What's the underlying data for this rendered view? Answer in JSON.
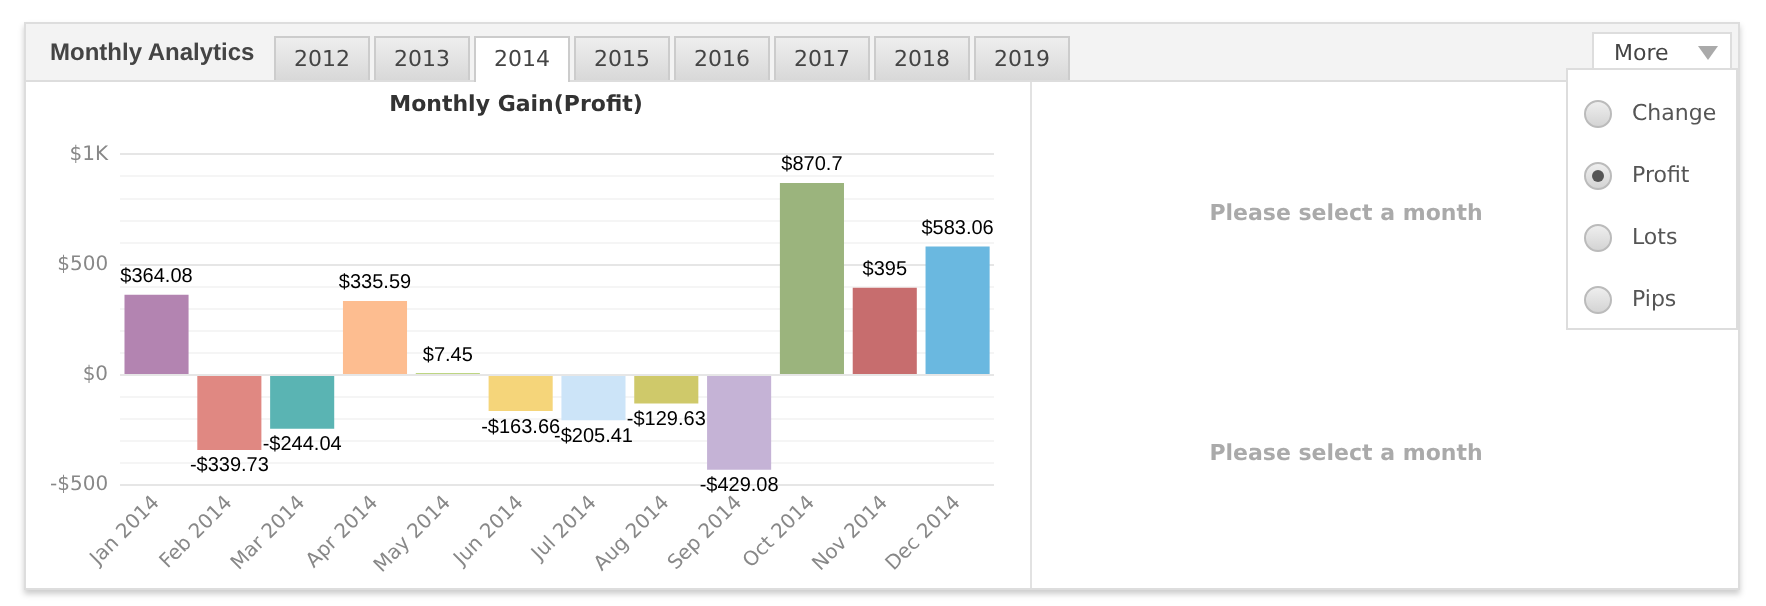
{
  "chart_data": {
    "type": "bar",
    "title": "Monthly Gain(Profit)",
    "categories": [
      "Jan 2014",
      "Feb 2014",
      "Mar 2014",
      "Apr 2014",
      "May 2014",
      "Jun 2014",
      "Jul 2014",
      "Aug 2014",
      "Sep 2014",
      "Oct 2014",
      "Nov 2014",
      "Dec 2014"
    ],
    "values": [
      364.08,
      -339.73,
      -244.04,
      335.59,
      7.45,
      -163.66,
      -205.41,
      -129.63,
      -429.08,
      870.7,
      395,
      583.06
    ],
    "colors": [
      "#b384b1",
      "#e08882",
      "#5ab4b3",
      "#fdbd90",
      "#a8c85a",
      "#f5d57a",
      "#cce4f8",
      "#cfc96a",
      "#c5b3d6",
      "#9bb47d",
      "#c76d6e",
      "#6ab8e0"
    ],
    "value_labels": [
      "$364.08",
      "-$339.73",
      "-$244.04",
      "$335.59",
      "$7.45",
      "-$163.66",
      "-$205.41",
      "-$129.63",
      "-$429.08",
      "$870.7",
      "$395",
      "$583.06"
    ],
    "ylim": [
      -500,
      1000
    ],
    "yticks": [
      {
        "value": -500,
        "label": "-$500"
      },
      {
        "value": -400,
        "label": null
      },
      {
        "value": -300,
        "label": null
      },
      {
        "value": -200,
        "label": null
      },
      {
        "value": -100,
        "label": null
      },
      {
        "value": 0,
        "label": "$0"
      },
      {
        "value": 100,
        "label": null
      },
      {
        "value": 200,
        "label": null
      },
      {
        "value": 300,
        "label": null
      },
      {
        "value": 400,
        "label": null
      },
      {
        "value": 500,
        "label": "$500"
      },
      {
        "value": 600,
        "label": null
      },
      {
        "value": 700,
        "label": null
      },
      {
        "value": 800,
        "label": null
      },
      {
        "value": 900,
        "label": null
      },
      {
        "value": 1000,
        "label": "$1K"
      }
    ],
    "grid": "y",
    "legend": false,
    "annotations": [
      "Monthly Analytics",
      "2012",
      "2013",
      "2014",
      "2015",
      "2016",
      "2017",
      "2018",
      "2019",
      "More",
      "Change",
      "Profit",
      "Lots",
      "Pips",
      "Please select a month",
      "Please select a month"
    ]
  }
}
